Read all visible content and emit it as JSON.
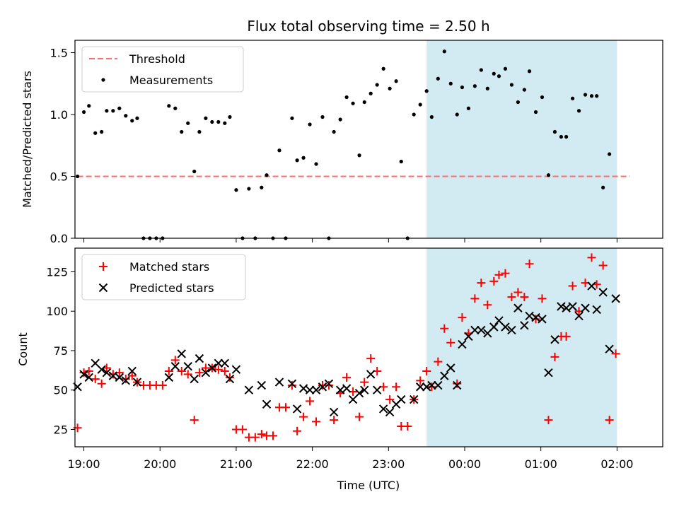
{
  "figure": {
    "title": "Flux total observing time = 2.50 h",
    "xlabel": "Time (UTC)",
    "x_ticks": [
      "19:00",
      "20:00",
      "21:00",
      "22:00",
      "23:00",
      "00:00",
      "01:00",
      "02:00"
    ]
  },
  "chart_data": [
    {
      "type": "scatter",
      "ylabel": "Matched/Predicted stars",
      "ylim": [
        0,
        1.6
      ],
      "y_ticks": [
        "0.0",
        "0.5",
        "1.0",
        "1.5"
      ],
      "xlim": [
        "18:53",
        "02:36"
      ],
      "shaded_interval": {
        "from": "23:30",
        "to": "02:00",
        "color": "#add8e6"
      },
      "threshold": {
        "name": "Threshold",
        "value": 0.5,
        "from": "18:55",
        "to": "02:10",
        "color": "#ff6f6f"
      },
      "legend": {
        "placement": "top-left",
        "entries": [
          "Threshold",
          "Measurements"
        ]
      },
      "series": [
        {
          "name": "Measurements",
          "marker": "dot",
          "color": "#000000",
          "points": [
            [
              "18:55",
              0.5
            ],
            [
              "19:00",
              1.02
            ],
            [
              "19:04",
              1.07
            ],
            [
              "19:09",
              0.85
            ],
            [
              "19:14",
              0.86
            ],
            [
              "19:18",
              1.03
            ],
            [
              "19:23",
              1.03
            ],
            [
              "19:28",
              1.05
            ],
            [
              "19:33",
              0.99
            ],
            [
              "19:38",
              0.95
            ],
            [
              "19:42",
              0.97
            ],
            [
              "19:47",
              0.0
            ],
            [
              "19:52",
              0.0
            ],
            [
              "19:57",
              0.0
            ],
            [
              "20:02",
              0.0
            ],
            [
              "20:07",
              1.07
            ],
            [
              "20:12",
              1.05
            ],
            [
              "20:17",
              0.86
            ],
            [
              "20:22",
              0.93
            ],
            [
              "20:27",
              0.54
            ],
            [
              "20:31",
              0.86
            ],
            [
              "20:36",
              0.97
            ],
            [
              "20:41",
              0.94
            ],
            [
              "20:46",
              0.94
            ],
            [
              "20:51",
              0.93
            ],
            [
              "20:55",
              0.98
            ],
            [
              "21:00",
              0.39
            ],
            [
              "21:05",
              0.0
            ],
            [
              "21:10",
              0.4
            ],
            [
              "21:15",
              0.0
            ],
            [
              "21:20",
              0.41
            ],
            [
              "21:24",
              0.51
            ],
            [
              "21:29",
              0.0
            ],
            [
              "21:34",
              0.71
            ],
            [
              "21:39",
              0.0
            ],
            [
              "21:44",
              0.97
            ],
            [
              "21:48",
              0.63
            ],
            [
              "21:53",
              0.65
            ],
            [
              "21:58",
              0.92
            ],
            [
              "22:03",
              0.6
            ],
            [
              "22:08",
              0.98
            ],
            [
              "22:13",
              0.0
            ],
            [
              "22:17",
              0.86
            ],
            [
              "22:22",
              0.96
            ],
            [
              "22:27",
              1.14
            ],
            [
              "22:32",
              1.09
            ],
            [
              "22:37",
              0.67
            ],
            [
              "22:41",
              1.1
            ],
            [
              "22:46",
              1.17
            ],
            [
              "22:51",
              1.24
            ],
            [
              "22:56",
              1.37
            ],
            [
              "23:01",
              1.21
            ],
            [
              "23:06",
              1.27
            ],
            [
              "23:10",
              0.62
            ],
            [
              "23:15",
              0.0
            ],
            [
              "23:20",
              1.0
            ],
            [
              "23:25",
              1.08
            ],
            [
              "23:30",
              1.19
            ],
            [
              "23:34",
              0.98
            ],
            [
              "23:39",
              1.29
            ],
            [
              "23:44",
              1.51
            ],
            [
              "23:49",
              1.25
            ],
            [
              "23:54",
              1.0
            ],
            [
              "23:58",
              1.22
            ],
            [
              "00:03",
              1.05
            ],
            [
              "00:08",
              1.23
            ],
            [
              "00:13",
              1.36
            ],
            [
              "00:18",
              1.21
            ],
            [
              "00:23",
              1.33
            ],
            [
              "00:27",
              1.31
            ],
            [
              "00:32",
              1.37
            ],
            [
              "00:37",
              1.24
            ],
            [
              "00:42",
              1.1
            ],
            [
              "00:47",
              1.2
            ],
            [
              "00:51",
              1.35
            ],
            [
              "00:56",
              1.02
            ],
            [
              "01:01",
              1.14
            ],
            [
              "01:06",
              0.51
            ],
            [
              "01:11",
              0.86
            ],
            [
              "01:16",
              0.82
            ],
            [
              "01:20",
              0.82
            ],
            [
              "01:25",
              1.13
            ],
            [
              "01:30",
              1.03
            ],
            [
              "01:35",
              1.16
            ],
            [
              "01:40",
              1.15
            ],
            [
              "01:44",
              1.15
            ],
            [
              "01:49",
              0.41
            ],
            [
              "01:54",
              0.68
            ]
          ]
        }
      ]
    },
    {
      "type": "scatter",
      "ylabel": "Count",
      "ylim": [
        14,
        140
      ],
      "y_ticks": [
        "25",
        "50",
        "75",
        "100",
        "125"
      ],
      "xlim": [
        "18:53",
        "02:36"
      ],
      "shaded_interval": {
        "from": "23:30",
        "to": "02:00",
        "color": "#add8e6"
      },
      "legend": {
        "placement": "top-left",
        "entries": [
          "Matched stars",
          "Predicted stars"
        ]
      },
      "series": [
        {
          "name": "Matched stars",
          "marker": "plus",
          "color": "#ff0000",
          "points": [
            [
              "18:55",
              26
            ],
            [
              "19:00",
              61
            ],
            [
              "19:04",
              62
            ],
            [
              "19:09",
              57
            ],
            [
              "19:14",
              54
            ],
            [
              "19:18",
              64
            ],
            [
              "19:23",
              60
            ],
            [
              "19:28",
              61
            ],
            [
              "19:33",
              57
            ],
            [
              "19:38",
              59
            ],
            [
              "19:42",
              55
            ],
            [
              "19:47",
              53
            ],
            [
              "19:52",
              53
            ],
            [
              "19:57",
              53
            ],
            [
              "20:02",
              53
            ],
            [
              "20:07",
              62
            ],
            [
              "20:12",
              69
            ],
            [
              "20:17",
              62
            ],
            [
              "20:22",
              60
            ],
            [
              "20:27",
              31
            ],
            [
              "20:31",
              61
            ],
            [
              "20:36",
              64
            ],
            [
              "20:41",
              64
            ],
            [
              "20:46",
              63
            ],
            [
              "20:51",
              62
            ],
            [
              "20:55",
              58
            ],
            [
              "21:00",
              25
            ],
            [
              "21:05",
              25
            ],
            [
              "21:10",
              20
            ],
            [
              "21:15",
              20
            ],
            [
              "21:20",
              22
            ],
            [
              "21:24",
              21
            ],
            [
              "21:29",
              21
            ],
            [
              "21:34",
              39
            ],
            [
              "21:39",
              39
            ],
            [
              "21:44",
              53
            ],
            [
              "21:48",
              24
            ],
            [
              "21:53",
              33
            ],
            [
              "21:58",
              43
            ],
            [
              "22:03",
              30
            ],
            [
              "22:08",
              53
            ],
            [
              "22:13",
              53
            ],
            [
              "22:17",
              31
            ],
            [
              "22:22",
              48
            ],
            [
              "22:27",
              58
            ],
            [
              "22:32",
              49
            ],
            [
              "22:37",
              33
            ],
            [
              "22:41",
              55
            ],
            [
              "22:46",
              70
            ],
            [
              "22:51",
              62
            ],
            [
              "22:56",
              52
            ],
            [
              "23:01",
              44
            ],
            [
              "23:06",
              52
            ],
            [
              "23:10",
              27
            ],
            [
              "23:15",
              27
            ],
            [
              "23:20",
              44
            ],
            [
              "23:25",
              56
            ],
            [
              "23:30",
              62
            ],
            [
              "23:34",
              52
            ],
            [
              "23:39",
              68
            ],
            [
              "23:44",
              89
            ],
            [
              "23:49",
              80
            ],
            [
              "23:54",
              54
            ],
            [
              "23:58",
              96
            ],
            [
              "00:03",
              86
            ],
            [
              "00:08",
              108
            ],
            [
              "00:13",
              118
            ],
            [
              "00:18",
              104
            ],
            [
              "00:23",
              119
            ],
            [
              "00:27",
              123
            ],
            [
              "00:32",
              124
            ],
            [
              "00:37",
              109
            ],
            [
              "00:42",
              112
            ],
            [
              "00:47",
              109
            ],
            [
              "00:51",
              130
            ],
            [
              "00:56",
              95
            ],
            [
              "01:01",
              108
            ],
            [
              "01:06",
              31
            ],
            [
              "01:11",
              71
            ],
            [
              "01:16",
              84
            ],
            [
              "01:20",
              84
            ],
            [
              "01:25",
              116
            ],
            [
              "01:30",
              100
            ],
            [
              "01:35",
              118
            ],
            [
              "01:40",
              134
            ],
            [
              "01:44",
              117
            ],
            [
              "01:49",
              129
            ],
            [
              "01:54",
              31
            ],
            [
              "01:59",
              73
            ]
          ]
        },
        {
          "name": "Predicted stars",
          "marker": "x",
          "color": "#000000",
          "points": [
            [
              "18:55",
              52
            ],
            [
              "19:00",
              60
            ],
            [
              "19:04",
              58
            ],
            [
              "19:09",
              67
            ],
            [
              "19:14",
              63
            ],
            [
              "19:18",
              61
            ],
            [
              "19:23",
              59
            ],
            [
              "19:28",
              58
            ],
            [
              "19:33",
              56
            ],
            [
              "19:38",
              62
            ],
            [
              "19:42",
              55
            ],
            [
              "20:07",
              58
            ],
            [
              "20:12",
              65
            ],
            [
              "20:17",
              73
            ],
            [
              "20:22",
              65
            ],
            [
              "20:27",
              57
            ],
            [
              "20:31",
              70
            ],
            [
              "20:36",
              61
            ],
            [
              "20:41",
              64
            ],
            [
              "20:46",
              67
            ],
            [
              "20:51",
              67
            ],
            [
              "20:55",
              57
            ],
            [
              "21:00",
              63
            ],
            [
              "21:10",
              50
            ],
            [
              "21:20",
              53
            ],
            [
              "21:24",
              41
            ],
            [
              "21:34",
              55
            ],
            [
              "21:44",
              54
            ],
            [
              "21:48",
              38
            ],
            [
              "21:53",
              51
            ],
            [
              "21:58",
              50
            ],
            [
              "22:03",
              50
            ],
            [
              "22:08",
              52
            ],
            [
              "22:13",
              54
            ],
            [
              "22:17",
              36
            ],
            [
              "22:22",
              50
            ],
            [
              "22:27",
              51
            ],
            [
              "22:32",
              44
            ],
            [
              "22:37",
              48
            ],
            [
              "22:41",
              50
            ],
            [
              "22:46",
              60
            ],
            [
              "22:51",
              50
            ],
            [
              "22:56",
              38
            ],
            [
              "23:01",
              36
            ],
            [
              "23:06",
              41
            ],
            [
              "23:10",
              44
            ],
            [
              "23:20",
              44
            ],
            [
              "23:25",
              52
            ],
            [
              "23:30",
              52
            ],
            [
              "23:34",
              53
            ],
            [
              "23:39",
              53
            ],
            [
              "23:44",
              59
            ],
            [
              "23:49",
              64
            ],
            [
              "23:54",
              53
            ],
            [
              "23:58",
              79
            ],
            [
              "00:03",
              84
            ],
            [
              "00:08",
              88
            ],
            [
              "00:13",
              88
            ],
            [
              "00:18",
              86
            ],
            [
              "00:23",
              90
            ],
            [
              "00:27",
              94
            ],
            [
              "00:32",
              90
            ],
            [
              "00:37",
              88
            ],
            [
              "00:42",
              102
            ],
            [
              "00:47",
              91
            ],
            [
              "00:51",
              97
            ],
            [
              "00:56",
              96
            ],
            [
              "01:01",
              95
            ],
            [
              "01:06",
              61
            ],
            [
              "01:11",
              82
            ],
            [
              "01:16",
              103
            ],
            [
              "01:20",
              102
            ],
            [
              "01:25",
              103
            ],
            [
              "01:30",
              97
            ],
            [
              "01:35",
              102
            ],
            [
              "01:40",
              116
            ],
            [
              "01:44",
              101
            ],
            [
              "01:49",
              112
            ],
            [
              "01:54",
              76
            ],
            [
              "01:59",
              108
            ]
          ]
        }
      ]
    }
  ]
}
